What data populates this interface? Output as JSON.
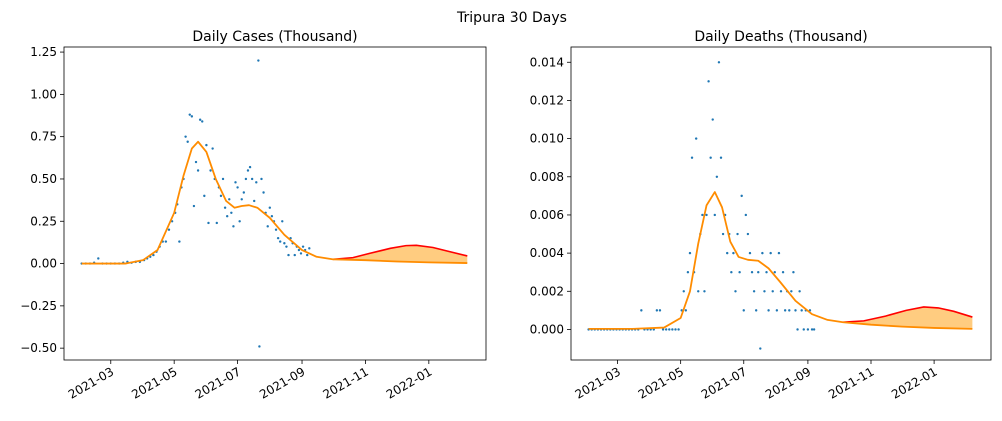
{
  "figure": {
    "suptitle": "Tripura 30 Days"
  },
  "colors": {
    "scatter": "#1f77b4",
    "fit": "#ff8c00",
    "upper": "#ff0000",
    "band": "#ffcc80"
  },
  "chart_data": [
    {
      "type": "scatter",
      "title": "Daily Cases (Thousand)",
      "xlabel": "",
      "ylabel": "",
      "xlim": [
        "2021-01-15",
        "2022-02-25"
      ],
      "ylim": [
        -0.57,
        1.28
      ],
      "x_ticks": [
        "2021-03",
        "2021-05",
        "2021-07",
        "2021-09",
        "2021-11",
        "2022-01"
      ],
      "y_ticks": [
        -0.5,
        -0.25,
        0.0,
        0.25,
        0.5,
        0.75,
        1.0,
        1.25
      ],
      "y_tick_labels": [
        "−0.50",
        "−0.25",
        "0.00",
        "0.25",
        "0.50",
        "0.75",
        "1.00",
        "1.25"
      ],
      "scatter": [
        [
          "2021-02-01",
          0
        ],
        [
          "2021-02-05",
          0
        ],
        [
          "2021-02-09",
          0
        ],
        [
          "2021-02-13",
          0.005
        ],
        [
          "2021-02-17",
          0.03
        ],
        [
          "2021-02-21",
          0
        ],
        [
          "2021-02-25",
          0
        ],
        [
          "2021-03-01",
          0
        ],
        [
          "2021-03-05",
          0
        ],
        [
          "2021-03-09",
          0
        ],
        [
          "2021-03-13",
          0.005
        ],
        [
          "2021-03-17",
          0.01
        ],
        [
          "2021-03-21",
          0.005
        ],
        [
          "2021-03-25",
          0.01
        ],
        [
          "2021-03-29",
          0.01
        ],
        [
          "2021-04-02",
          0.02
        ],
        [
          "2021-04-05",
          0.03
        ],
        [
          "2021-04-08",
          0.04
        ],
        [
          "2021-04-11",
          0.05
        ],
        [
          "2021-04-14",
          0.07
        ],
        [
          "2021-04-17",
          0.1
        ],
        [
          "2021-04-20",
          0.13
        ],
        [
          "2021-04-23",
          0.13
        ],
        [
          "2021-04-26",
          0.2
        ],
        [
          "2021-04-29",
          0.25
        ],
        [
          "2021-05-02",
          0.3
        ],
        [
          "2021-05-04",
          0.35
        ],
        [
          "2021-05-06",
          0.13
        ],
        [
          "2021-05-08",
          0.45
        ],
        [
          "2021-05-10",
          0.5
        ],
        [
          "2021-05-12",
          0.75
        ],
        [
          "2021-05-14",
          0.72
        ],
        [
          "2021-05-16",
          0.88
        ],
        [
          "2021-05-18",
          0.87
        ],
        [
          "2021-05-20",
          0.34
        ],
        [
          "2021-05-22",
          0.6
        ],
        [
          "2021-05-24",
          0.55
        ],
        [
          "2021-05-26",
          0.85
        ],
        [
          "2021-05-28",
          0.84
        ],
        [
          "2021-05-30",
          0.4
        ],
        [
          "2021-06-01",
          0.7
        ],
        [
          "2021-06-03",
          0.24
        ],
        [
          "2021-06-05",
          0.55
        ],
        [
          "2021-06-07",
          0.68
        ],
        [
          "2021-06-09",
          0.5
        ],
        [
          "2021-06-11",
          0.24
        ],
        [
          "2021-06-13",
          0.45
        ],
        [
          "2021-06-15",
          0.4
        ],
        [
          "2021-06-17",
          0.5
        ],
        [
          "2021-06-19",
          0.33
        ],
        [
          "2021-06-21",
          0.28
        ],
        [
          "2021-06-23",
          0.38
        ],
        [
          "2021-06-25",
          0.3
        ],
        [
          "2021-06-27",
          0.22
        ],
        [
          "2021-06-29",
          0.48
        ],
        [
          "2021-07-01",
          0.45
        ],
        [
          "2021-07-03",
          0.25
        ],
        [
          "2021-07-05",
          0.38
        ],
        [
          "2021-07-07",
          0.42
        ],
        [
          "2021-07-09",
          0.5
        ],
        [
          "2021-07-11",
          0.55
        ],
        [
          "2021-07-13",
          0.57
        ],
        [
          "2021-07-15",
          0.5
        ],
        [
          "2021-07-17",
          0.37
        ],
        [
          "2021-07-19",
          0.48
        ],
        [
          "2021-07-21",
          1.2
        ],
        [
          "2021-07-22",
          -0.49
        ],
        [
          "2021-07-24",
          0.5
        ],
        [
          "2021-07-26",
          0.42
        ],
        [
          "2021-07-28",
          0.3
        ],
        [
          "2021-07-30",
          0.22
        ],
        [
          "2021-08-01",
          0.33
        ],
        [
          "2021-08-03",
          0.28
        ],
        [
          "2021-08-05",
          0.25
        ],
        [
          "2021-08-07",
          0.2
        ],
        [
          "2021-08-09",
          0.15
        ],
        [
          "2021-08-11",
          0.13
        ],
        [
          "2021-08-13",
          0.25
        ],
        [
          "2021-08-15",
          0.12
        ],
        [
          "2021-08-17",
          0.1
        ],
        [
          "2021-08-19",
          0.05
        ],
        [
          "2021-08-21",
          0.15
        ],
        [
          "2021-08-23",
          0.12
        ],
        [
          "2021-08-25",
          0.05
        ],
        [
          "2021-08-27",
          0.1
        ],
        [
          "2021-08-29",
          0.08
        ],
        [
          "2021-08-31",
          0.06
        ],
        [
          "2021-09-02",
          0.1
        ],
        [
          "2021-09-04",
          0.08
        ],
        [
          "2021-09-06",
          0.05
        ],
        [
          "2021-09-08",
          0.09
        ]
      ],
      "fit_curve": [
        [
          "2021-02-01",
          0
        ],
        [
          "2021-03-15",
          0
        ],
        [
          "2021-04-01",
          0.02
        ],
        [
          "2021-04-15",
          0.08
        ],
        [
          "2021-05-01",
          0.3
        ],
        [
          "2021-05-10",
          0.52
        ],
        [
          "2021-05-18",
          0.68
        ],
        [
          "2021-05-24",
          0.72
        ],
        [
          "2021-06-01",
          0.66
        ],
        [
          "2021-06-10",
          0.5
        ],
        [
          "2021-06-20",
          0.37
        ],
        [
          "2021-06-28",
          0.33
        ],
        [
          "2021-07-05",
          0.34
        ],
        [
          "2021-07-12",
          0.345
        ],
        [
          "2021-07-20",
          0.33
        ],
        [
          "2021-08-01",
          0.27
        ],
        [
          "2021-08-15",
          0.17
        ],
        [
          "2021-09-01",
          0.08
        ],
        [
          "2021-09-15",
          0.04
        ],
        [
          "2021-10-01",
          0.025
        ],
        [
          "2021-11-01",
          0.02
        ],
        [
          "2021-12-01",
          0.012
        ],
        [
          "2022-01-01",
          0.007
        ],
        [
          "2022-02-07",
          0.003
        ]
      ],
      "upper_curve": [
        [
          "2021-10-01",
          0.025
        ],
        [
          "2021-10-20",
          0.035
        ],
        [
          "2021-11-05",
          0.06
        ],
        [
          "2021-11-25",
          0.09
        ],
        [
          "2021-12-10",
          0.106
        ],
        [
          "2021-12-20",
          0.108
        ],
        [
          "2022-01-05",
          0.095
        ],
        [
          "2022-01-20",
          0.072
        ],
        [
          "2022-02-07",
          0.045
        ]
      ]
    },
    {
      "type": "scatter",
      "title": "Daily Deaths (Thousand)",
      "xlabel": "",
      "ylabel": "",
      "xlim": [
        "2021-01-15",
        "2022-02-25"
      ],
      "ylim": [
        -0.0016,
        0.0148
      ],
      "x_ticks": [
        "2021-03",
        "2021-05",
        "2021-07",
        "2021-09",
        "2021-11",
        "2022-01"
      ],
      "y_ticks": [
        0.0,
        0.002,
        0.004,
        0.006,
        0.008,
        0.01,
        0.012,
        0.014
      ],
      "y_tick_labels": [
        "0.000",
        "0.002",
        "0.004",
        "0.006",
        "0.008",
        "0.010",
        "0.012",
        "0.014"
      ],
      "scatter": [
        [
          "2021-02-01",
          0
        ],
        [
          "2021-02-04",
          0
        ],
        [
          "2021-02-07",
          0
        ],
        [
          "2021-02-10",
          0
        ],
        [
          "2021-02-13",
          0
        ],
        [
          "2021-02-16",
          0
        ],
        [
          "2021-02-19",
          0
        ],
        [
          "2021-02-22",
          0
        ],
        [
          "2021-02-25",
          0
        ],
        [
          "2021-02-28",
          0
        ],
        [
          "2021-03-03",
          0
        ],
        [
          "2021-03-06",
          0
        ],
        [
          "2021-03-09",
          0
        ],
        [
          "2021-03-12",
          0
        ],
        [
          "2021-03-15",
          0
        ],
        [
          "2021-03-18",
          0
        ],
        [
          "2021-03-21",
          0
        ],
        [
          "2021-03-24",
          0.001
        ],
        [
          "2021-03-27",
          0
        ],
        [
          "2021-03-30",
          0
        ],
        [
          "2021-04-02",
          0
        ],
        [
          "2021-04-05",
          0
        ],
        [
          "2021-04-08",
          0.001
        ],
        [
          "2021-04-11",
          0.001
        ],
        [
          "2021-04-14",
          0
        ],
        [
          "2021-04-17",
          0
        ],
        [
          "2021-04-20",
          0
        ],
        [
          "2021-04-23",
          0
        ],
        [
          "2021-04-26",
          0
        ],
        [
          "2021-04-29",
          0
        ],
        [
          "2021-05-02",
          0.001
        ],
        [
          "2021-05-04",
          0.002
        ],
        [
          "2021-05-06",
          0.001
        ],
        [
          "2021-05-08",
          0.003
        ],
        [
          "2021-05-10",
          0.004
        ],
        [
          "2021-05-12",
          0.009
        ],
        [
          "2021-05-14",
          0.003
        ],
        [
          "2021-05-16",
          0.01
        ],
        [
          "2021-05-18",
          0.002
        ],
        [
          "2021-05-20",
          0.005
        ],
        [
          "2021-05-22",
          0.006
        ],
        [
          "2021-05-24",
          0.002
        ],
        [
          "2021-05-26",
          0.006
        ],
        [
          "2021-05-28",
          0.013
        ],
        [
          "2021-05-30",
          0.009
        ],
        [
          "2021-06-01",
          0.011
        ],
        [
          "2021-06-03",
          0.006
        ],
        [
          "2021-06-05",
          0.008
        ],
        [
          "2021-06-07",
          0.014
        ],
        [
          "2021-06-09",
          0.009
        ],
        [
          "2021-06-11",
          0.005
        ],
        [
          "2021-06-13",
          0.006
        ],
        [
          "2021-06-15",
          0.004
        ],
        [
          "2021-06-17",
          0.005
        ],
        [
          "2021-06-19",
          0.003
        ],
        [
          "2021-06-21",
          0.004
        ],
        [
          "2021-06-23",
          0.002
        ],
        [
          "2021-06-25",
          0.005
        ],
        [
          "2021-06-27",
          0.003
        ],
        [
          "2021-06-29",
          0.007
        ],
        [
          "2021-07-01",
          0.001
        ],
        [
          "2021-07-03",
          0.006
        ],
        [
          "2021-07-05",
          0.005
        ],
        [
          "2021-07-07",
          0.004
        ],
        [
          "2021-07-09",
          0.003
        ],
        [
          "2021-07-11",
          0.002
        ],
        [
          "2021-07-13",
          0.001
        ],
        [
          "2021-07-15",
          0.003
        ],
        [
          "2021-07-17",
          -0.001
        ],
        [
          "2021-07-19",
          0.004
        ],
        [
          "2021-07-21",
          0.002
        ],
        [
          "2021-07-23",
          0.003
        ],
        [
          "2021-07-25",
          0.001
        ],
        [
          "2021-07-27",
          0.004
        ],
        [
          "2021-07-29",
          0.002
        ],
        [
          "2021-07-31",
          0.003
        ],
        [
          "2021-08-02",
          0.001
        ],
        [
          "2021-08-04",
          0.004
        ],
        [
          "2021-08-06",
          0.002
        ],
        [
          "2021-08-08",
          0.003
        ],
        [
          "2021-08-10",
          0.001
        ],
        [
          "2021-08-12",
          0.002
        ],
        [
          "2021-08-14",
          0.001
        ],
        [
          "2021-08-16",
          0.002
        ],
        [
          "2021-08-18",
          0.003
        ],
        [
          "2021-08-20",
          0.001
        ],
        [
          "2021-08-22",
          0
        ],
        [
          "2021-08-24",
          0.002
        ],
        [
          "2021-08-26",
          0.001
        ],
        [
          "2021-08-28",
          0
        ],
        [
          "2021-08-30",
          0.001
        ],
        [
          "2021-09-01",
          0
        ],
        [
          "2021-09-03",
          0.001
        ],
        [
          "2021-09-05",
          0
        ],
        [
          "2021-09-07",
          0
        ]
      ],
      "fit_curve": [
        [
          "2021-02-01",
          3e-05
        ],
        [
          "2021-03-15",
          3e-05
        ],
        [
          "2021-04-15",
          0.0001
        ],
        [
          "2021-05-01",
          0.0006
        ],
        [
          "2021-05-10",
          0.002
        ],
        [
          "2021-05-18",
          0.0045
        ],
        [
          "2021-05-26",
          0.0065
        ],
        [
          "2021-06-03",
          0.0072
        ],
        [
          "2021-06-10",
          0.0064
        ],
        [
          "2021-06-18",
          0.0046
        ],
        [
          "2021-06-26",
          0.0038
        ],
        [
          "2021-07-05",
          0.00365
        ],
        [
          "2021-07-15",
          0.0036
        ],
        [
          "2021-07-25",
          0.0032
        ],
        [
          "2021-08-05",
          0.0025
        ],
        [
          "2021-08-20",
          0.0015
        ],
        [
          "2021-09-05",
          0.0008
        ],
        [
          "2021-09-20",
          0.0005
        ],
        [
          "2021-10-05",
          0.00038
        ],
        [
          "2021-11-01",
          0.00025
        ],
        [
          "2021-12-01",
          0.00015
        ],
        [
          "2022-01-01",
          8e-05
        ],
        [
          "2022-02-07",
          3e-05
        ]
      ],
      "upper_curve": [
        [
          "2021-10-05",
          0.00038
        ],
        [
          "2021-10-25",
          0.00045
        ],
        [
          "2021-11-15",
          0.0007
        ],
        [
          "2021-12-05",
          0.001
        ],
        [
          "2021-12-22",
          0.00118
        ],
        [
          "2022-01-05",
          0.00113
        ],
        [
          "2022-01-20",
          0.00095
        ],
        [
          "2022-02-07",
          0.00065
        ]
      ]
    }
  ]
}
